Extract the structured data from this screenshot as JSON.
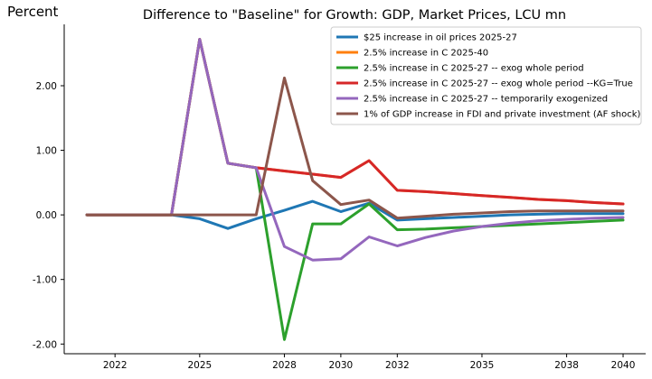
{
  "chart_data": {
    "type": "line",
    "title": "Difference to \"Baseline\" for Growth: GDP, Market Prices, LCU mn",
    "ylabel": "Percent",
    "xlabel": "",
    "x": [
      2021,
      2022,
      2023,
      2024,
      2025,
      2026,
      2027,
      2028,
      2029,
      2030,
      2031,
      2032,
      2033,
      2034,
      2035,
      2036,
      2037,
      2038,
      2039,
      2040
    ],
    "xlim": [
      2020.2,
      2040.8
    ],
    "ylim": [
      -2.15,
      2.95
    ],
    "xticks": [
      2022,
      2025,
      2028,
      2030,
      2032,
      2035,
      2038,
      2040
    ],
    "yticks": [
      -2.0,
      -1.0,
      0.0,
      1.0,
      2.0
    ],
    "ytick_labels": [
      "-2.00",
      "-1.00",
      "0.00",
      "1.00",
      "2.00"
    ],
    "grid": false,
    "legend_position": "top-right",
    "series": [
      {
        "name": "$25 increase in oil prices 2025-27",
        "color": "#1f77b4",
        "values": [
          0.0,
          0.0,
          0.0,
          0.0,
          -0.06,
          -0.21,
          -0.06,
          0.07,
          0.21,
          0.05,
          0.18,
          -0.08,
          -0.06,
          -0.04,
          -0.02,
          0.0,
          0.01,
          0.02,
          0.02,
          0.02
        ]
      },
      {
        "name": "2.5% increase in C 2025-40",
        "color": "#ff7f0e",
        "values": [
          0.0,
          0.0,
          0.0,
          0.0,
          2.72,
          0.8,
          0.73,
          0.68,
          0.63,
          0.58,
          0.84,
          0.38,
          0.36,
          0.33,
          0.3,
          0.27,
          0.24,
          0.22,
          0.19,
          0.17
        ]
      },
      {
        "name": "2.5% increase in C 2025-27 -- exog whole period",
        "color": "#2ca02c",
        "values": [
          0.0,
          0.0,
          0.0,
          0.0,
          2.72,
          0.8,
          0.73,
          -1.93,
          -0.14,
          -0.14,
          0.17,
          -0.23,
          -0.22,
          -0.2,
          -0.18,
          -0.16,
          -0.14,
          -0.12,
          -0.1,
          -0.08
        ]
      },
      {
        "name": "2.5% increase in C 2025-27 -- exog whole period --KG=True",
        "color": "#d62728",
        "values": [
          0.0,
          0.0,
          0.0,
          0.0,
          2.72,
          0.8,
          0.73,
          0.68,
          0.63,
          0.58,
          0.84,
          0.38,
          0.36,
          0.33,
          0.3,
          0.27,
          0.24,
          0.22,
          0.19,
          0.17
        ]
      },
      {
        "name": "2.5% increase in C 2025-27 -- temporarily exogenized",
        "color": "#9467bd",
        "values": [
          0.0,
          0.0,
          0.0,
          0.0,
          2.72,
          0.8,
          0.73,
          -0.49,
          -0.7,
          -0.68,
          -0.34,
          -0.48,
          -0.35,
          -0.25,
          -0.18,
          -0.13,
          -0.09,
          -0.07,
          -0.05,
          -0.04
        ]
      },
      {
        "name": "1% of GDP increase in FDI and private investment (AF shock)",
        "color": "#8c564b",
        "values": [
          0.0,
          0.0,
          0.0,
          0.0,
          0.0,
          0.0,
          0.0,
          2.12,
          0.53,
          0.16,
          0.23,
          -0.05,
          -0.02,
          0.01,
          0.03,
          0.05,
          0.06,
          0.06,
          0.06,
          0.06
        ]
      }
    ]
  }
}
